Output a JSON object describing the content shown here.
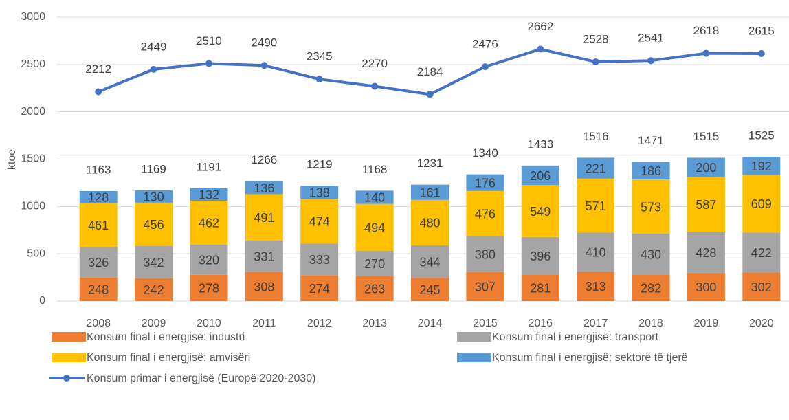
{
  "chart_data": {
    "type": "bar",
    "stacked": true,
    "ylabel": "ktoe",
    "categories": [
      "2008",
      "2009",
      "2010",
      "2011",
      "2012",
      "2013",
      "2014",
      "2015",
      "2016",
      "2017",
      "2018",
      "2019",
      "2020"
    ],
    "series": [
      {
        "name": "Konsum final i energjisë: industri",
        "type": "bar",
        "color": "#ed7d31",
        "values": [
          248,
          242,
          278,
          308,
          274,
          263,
          245,
          307,
          281,
          313,
          282,
          300,
          302
        ]
      },
      {
        "name": "Konsum final i energjisë: transport",
        "type": "bar",
        "color": "#a5a5a5",
        "values": [
          326,
          342,
          320,
          331,
          333,
          270,
          344,
          380,
          396,
          410,
          430,
          428,
          422
        ]
      },
      {
        "name": "Konsum final i energjisë: amvisëri",
        "type": "bar",
        "color": "#ffc000",
        "values": [
          461,
          456,
          462,
          491,
          474,
          494,
          480,
          476,
          549,
          571,
          573,
          587,
          609
        ]
      },
      {
        "name": "Konsum final i energjisë: sektorë të tjerë",
        "type": "bar",
        "color": "#5b9bd5",
        "values": [
          128,
          130,
          132,
          136,
          138,
          140,
          161,
          176,
          206,
          221,
          186,
          200,
          192
        ]
      },
      {
        "name": "Konsum primar i energjisë (Europë 2020-2030)",
        "type": "line",
        "color": "#4472c4",
        "values": [
          2212,
          2449,
          2510,
          2490,
          2345,
          2270,
          2184,
          2476,
          2662,
          2528,
          2541,
          2618,
          2615
        ]
      }
    ],
    "total_labels": [
      1163,
      1169,
      1191,
      1266,
      1219,
      1168,
      1231,
      1340,
      1433,
      1516,
      1471,
      1515,
      1525
    ],
    "ylim": [
      0,
      3000
    ],
    "yticks": [
      0,
      500,
      1000,
      1500,
      2000,
      2500,
      3000
    ],
    "grid": true
  }
}
